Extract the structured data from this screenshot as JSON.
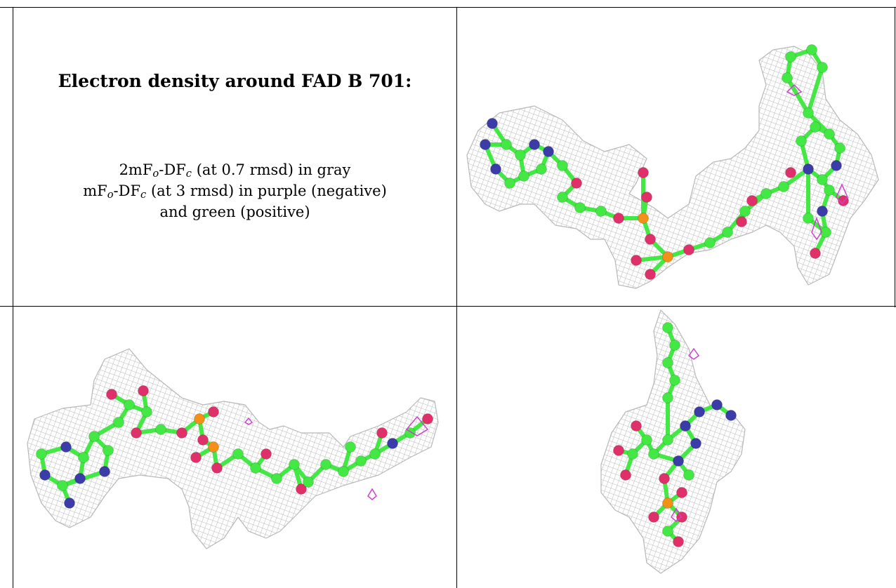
{
  "caption": {
    "title": "Electron density around FAD B 701:",
    "line1": {
      "pre": "2mF",
      "o": "o",
      "mid": "-DF",
      "c": "c",
      "post": " (at 0.7 rmsd) in gray"
    },
    "line2": {
      "pre": "mF",
      "o": "o",
      "mid": "-DF",
      "c": "c",
      "post": " (at 3 rmsd) in purple (negative)"
    },
    "line3": "and green (positive)"
  },
  "colors": {
    "mesh": "#b8b8b8",
    "carbon": "#44e844",
    "nitrogen": "#3c3ca8",
    "oxygen": "#e0306a",
    "phosphorus": "#f29018",
    "negative_density": "#d040d0"
  },
  "panels": [
    {
      "id": "top-right",
      "view": "extended ligand, isoalloxazine ring upper right"
    },
    {
      "id": "bottom-left",
      "view": "extended ligand, adenine ring lower left"
    },
    {
      "id": "bottom-right",
      "view": "end-on view of ligand"
    }
  ]
}
